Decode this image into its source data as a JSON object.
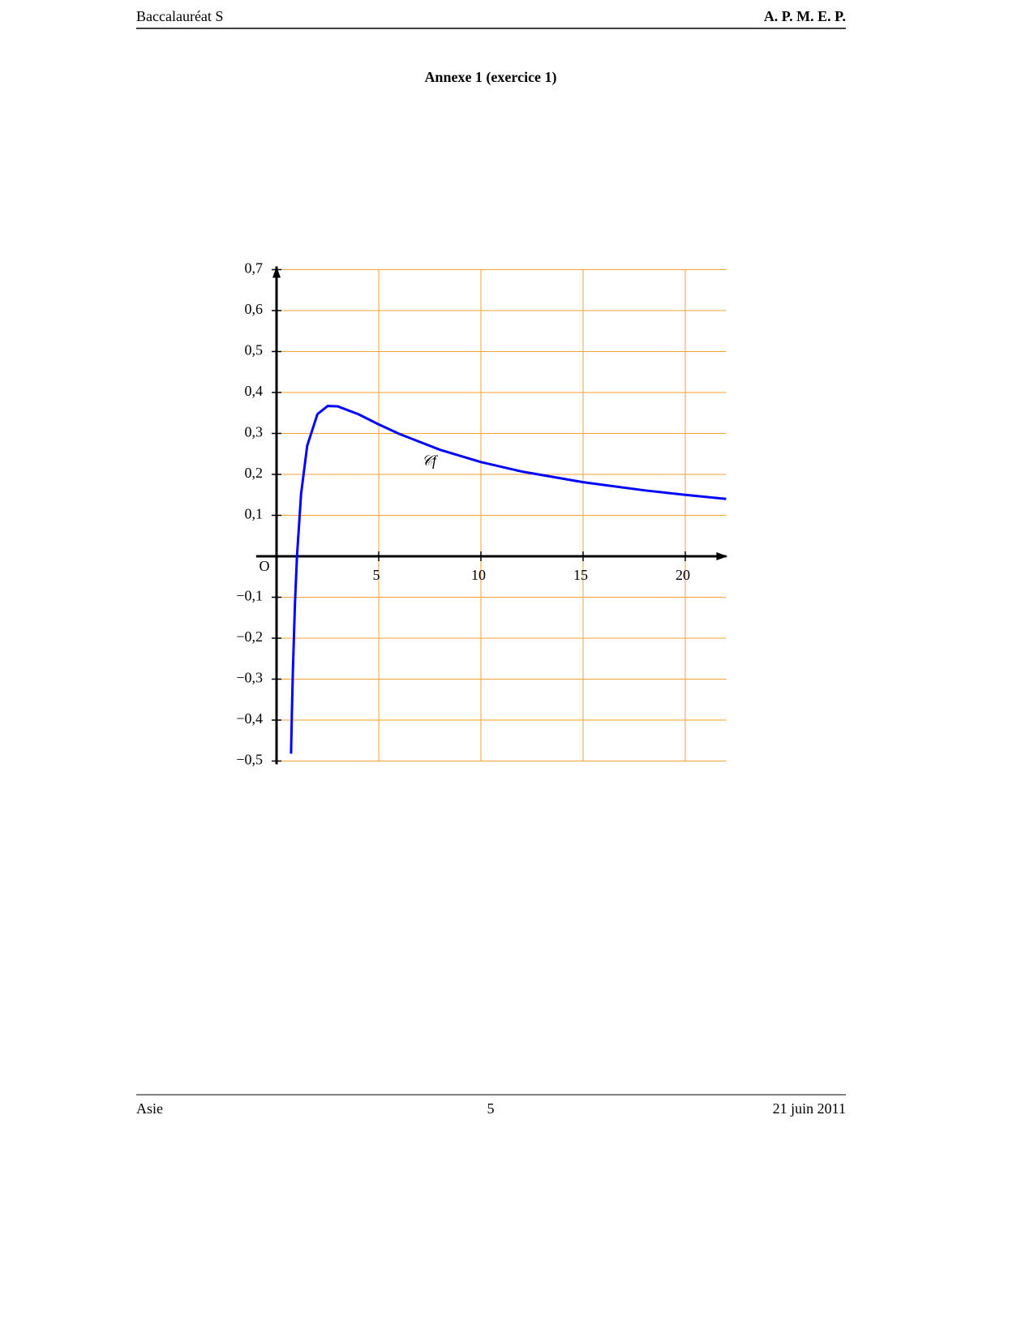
{
  "header": {
    "left": "Baccalauréat S",
    "right": "A. P. M. E. P."
  },
  "title": "Annexe 1 (exercice 1)",
  "chart_data": {
    "type": "line",
    "x": [
      0.71,
      0.72,
      0.75,
      0.8,
      0.9,
      1,
      1.2,
      1.5,
      2,
      2.5,
      3,
      4,
      5,
      6,
      8,
      10,
      12,
      15,
      18,
      20,
      22
    ],
    "series": [
      {
        "color": "#0000ff",
        "values": [
          -0.482,
          -0.456,
          -0.384,
          -0.279,
          -0.117,
          0,
          0.152,
          0.27,
          0.347,
          0.367,
          0.366,
          0.347,
          0.322,
          0.299,
          0.26,
          0.23,
          0.207,
          0.181,
          0.161,
          0.15,
          0.14
        ]
      }
    ],
    "xlim": [
      -1,
      22
    ],
    "ylim": [
      -0.5,
      0.7
    ],
    "xticks": [
      5,
      10,
      15,
      20
    ],
    "yticks": [
      {
        "value": 0.7,
        "label": "0,7"
      },
      {
        "value": 0.6,
        "label": "0,6"
      },
      {
        "value": 0.5,
        "label": "0,5"
      },
      {
        "value": 0.4,
        "label": "0,4"
      },
      {
        "value": 0.3,
        "label": "0,3"
      },
      {
        "value": 0.2,
        "label": "0,2"
      },
      {
        "value": 0.1,
        "label": "0,1"
      },
      {
        "value": -0.1,
        "label": "−0,1"
      },
      {
        "value": -0.2,
        "label": "−0,2"
      },
      {
        "value": -0.3,
        "label": "−0,3"
      },
      {
        "value": -0.4,
        "label": "−0,4"
      },
      {
        "value": -0.5,
        "label": "−0,5"
      }
    ],
    "grid": true,
    "grid_color": "#f5a030",
    "origin_label": "O",
    "curve_label": "𝒞f"
  },
  "footer": {
    "left": "Asie",
    "center": "5",
    "right": "21 juin 2011"
  }
}
